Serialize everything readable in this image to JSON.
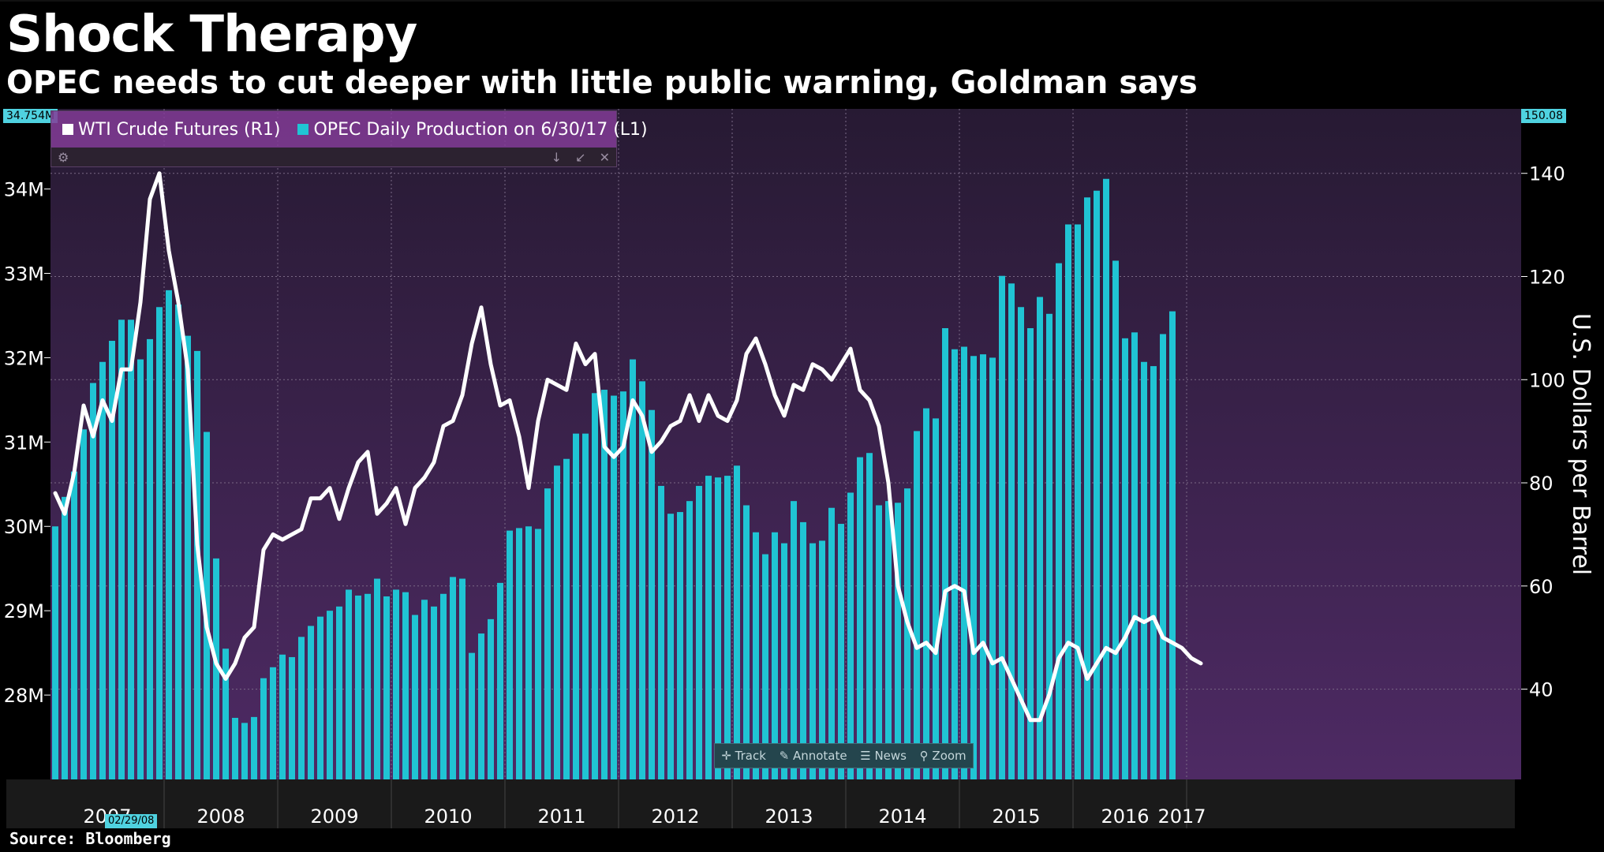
{
  "header": {
    "title": "Shock Therapy",
    "subtitle": "OPEC needs to cut deeper with little public warning, Goldman says"
  },
  "legend": {
    "items": [
      {
        "label": "WTI Crude Futures (R1)",
        "color": "#ffffff"
      },
      {
        "label": "OPEC Daily Production on 6/30/17 (L1)",
        "color": "#20c4d4"
      }
    ],
    "tools": {
      "settings_icon": "gear-icon",
      "pin_icon": "pin-icon",
      "resize_icon": "resize-icon",
      "close_icon": "close-icon"
    }
  },
  "axis_flags": {
    "left_last": "34.754M",
    "right_last": "150.08"
  },
  "toolbar": {
    "track": "Track",
    "annotate": "Annotate",
    "news": "News",
    "zoom": "Zoom"
  },
  "date_flag": "02/29/08",
  "source": "Source: Bloomberg",
  "colors": {
    "bar": "#20c4d4",
    "line": "#ffffff",
    "plot_bg_top": "#271a33",
    "plot_bg_bottom": "#4e2a64",
    "grid": "#7a6a86"
  },
  "chart_data": {
    "type": "bar",
    "title": "Shock Therapy",
    "subtitle": "OPEC needs to cut deeper with little public warning, Goldman says",
    "x_start": "2007-01",
    "x_labels": [
      "2007",
      "2008",
      "2009",
      "2010",
      "2011",
      "2012",
      "2013",
      "2014",
      "2015",
      "2016",
      "2017"
    ],
    "series": [
      {
        "name": "OPEC Daily Production on 6/30/17 (L1)",
        "type": "bar",
        "axis": "left",
        "values": [
          30.0,
          30.35,
          30.65,
          31.15,
          31.7,
          31.95,
          32.2,
          32.45,
          32.45,
          31.98,
          32.22,
          32.6,
          32.8,
          32.63,
          32.26,
          32.08,
          31.12,
          29.62,
          28.55,
          27.73,
          27.67,
          27.74,
          28.2,
          28.33,
          28.48,
          28.45,
          28.69,
          28.82,
          28.93,
          29.0,
          29.05,
          29.25,
          29.18,
          29.2,
          29.38,
          29.17,
          29.25,
          29.22,
          28.95,
          29.13,
          29.05,
          29.2,
          29.4,
          29.38,
          28.5,
          28.73,
          28.9,
          29.33,
          29.95,
          29.98,
          30.0,
          29.97,
          30.45,
          30.72,
          30.8,
          31.1,
          31.1,
          31.58,
          31.62,
          31.55,
          31.6,
          31.98,
          31.72,
          31.38,
          30.48,
          30.15,
          30.17,
          30.3,
          30.48,
          30.6,
          30.58,
          30.6,
          30.72,
          30.25,
          29.93,
          29.67,
          29.93,
          29.8,
          30.3,
          30.05,
          29.8,
          29.83,
          30.22,
          30.03,
          30.4,
          30.82,
          30.87,
          30.25,
          30.3,
          30.28,
          30.45,
          31.13,
          31.4,
          31.28,
          32.35,
          32.1,
          32.13,
          32.02,
          32.04,
          32.0,
          32.97,
          32.88,
          32.6,
          32.35,
          32.72,
          32.52,
          33.12,
          33.58,
          33.58,
          33.9,
          33.98,
          34.12,
          33.15,
          32.23,
          32.3,
          31.95,
          31.9,
          32.28,
          32.55
        ]
      },
      {
        "name": "WTI Crude Futures (R1)",
        "type": "line",
        "axis": "right",
        "values": [
          78,
          74,
          82,
          95,
          89,
          96,
          92,
          102,
          102,
          115,
          135,
          140,
          125,
          115,
          102,
          68,
          52,
          45,
          42,
          45,
          50,
          52,
          67,
          70,
          69,
          70,
          71,
          77,
          77,
          79,
          73,
          79,
          84,
          86,
          74,
          76,
          79,
          72,
          79,
          81,
          84,
          91,
          92,
          97,
          107,
          114,
          103,
          95,
          96,
          89,
          79,
          92,
          100,
          99,
          98,
          107,
          103,
          105,
          87,
          85,
          87,
          96,
          93,
          86,
          88,
          91,
          92,
          97,
          92,
          97,
          93,
          92,
          96,
          105,
          108,
          103,
          97,
          93,
          99,
          98,
          103,
          102,
          100,
          103,
          106,
          98,
          96,
          91,
          80,
          60,
          53,
          48,
          49,
          47,
          59,
          60,
          59,
          47,
          49,
          45,
          46,
          42,
          38,
          34,
          34,
          39,
          46,
          49,
          48,
          42,
          45,
          48,
          47,
          50,
          54,
          53,
          54,
          50,
          49,
          48,
          46,
          45
        ]
      }
    ],
    "left_axis": {
      "ticks": [
        "28M",
        "29M",
        "30M",
        "31M",
        "32M",
        "33M",
        "34M"
      ],
      "tick_values": [
        28,
        29,
        30,
        31,
        32,
        33,
        34
      ],
      "range": [
        27.0,
        34.95
      ]
    },
    "right_axis": {
      "label": "U.S. Dollars per Barrel",
      "ticks": [
        "40",
        "60",
        "80",
        "100",
        "120",
        "140"
      ],
      "tick_values": [
        40,
        60,
        80,
        100,
        120,
        140
      ],
      "range": [
        22.5,
        152.5
      ]
    },
    "grid": true,
    "legend_position": "top-left"
  }
}
